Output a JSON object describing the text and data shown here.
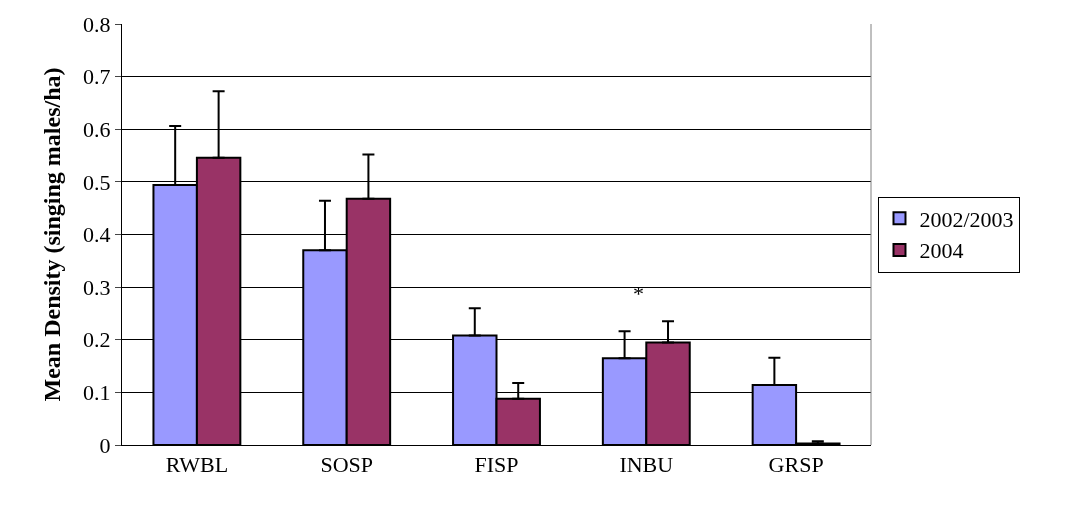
{
  "chart_data": {
    "type": "bar",
    "ylabel": "Mean Density (singing males/ha)",
    "categories": [
      "RWBL",
      "SOSP",
      "FISP",
      "INBU",
      "GRSP"
    ],
    "series": [
      {
        "name": "2002/2003",
        "color": "#9999ff",
        "values": [
          0.494,
          0.37,
          0.208,
          0.165,
          0.114
        ],
        "errors": [
          [
            0.494,
            0.606
          ],
          [
            0.37,
            0.464
          ],
          [
            0.208,
            0.26
          ],
          [
            0.165,
            0.216
          ],
          [
            0.114,
            0.166
          ]
        ]
      },
      {
        "name": "2004",
        "color": "#993366",
        "values": [
          0.546,
          0.468,
          0.088,
          0.195,
          0.003
        ],
        "errors": [
          [
            0.546,
            0.672
          ],
          [
            0.468,
            0.552
          ],
          [
            0.088,
            0.118
          ],
          [
            0.195,
            0.235
          ],
          [
            0.003,
            0.007
          ]
        ]
      }
    ],
    "ylim": [
      0,
      0.8
    ],
    "yticks": [
      0,
      0.1,
      0.2,
      0.3,
      0.4,
      0.5,
      0.6,
      0.7,
      0.8
    ],
    "annotations": [
      "*"
    ],
    "grid": "y",
    "legend": "right"
  }
}
